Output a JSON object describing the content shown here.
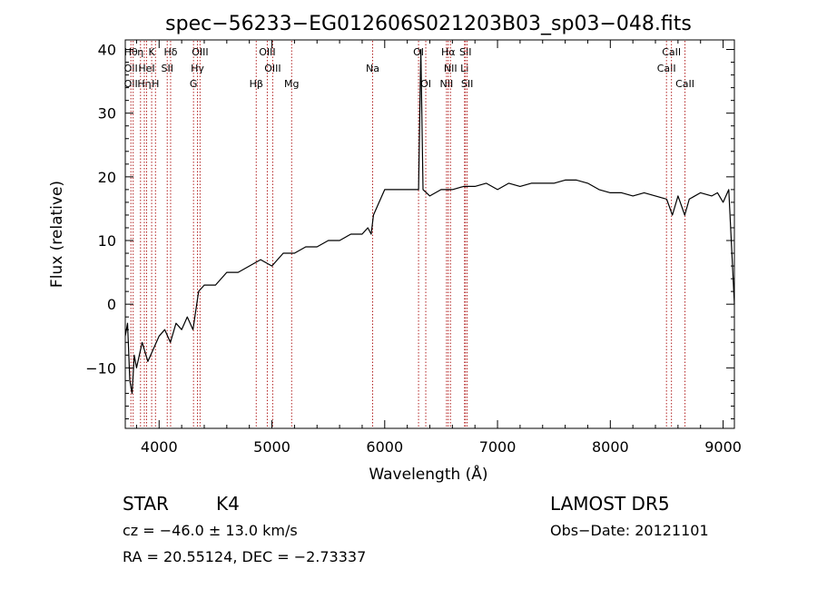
{
  "chart_data": {
    "type": "line",
    "title": "spec−56233−EG012606S021203B03_sp03−048.fits",
    "xlabel": "Wavelength (Å)",
    "ylabel": "Flux (relative)",
    "xlim": [
      3700,
      9100
    ],
    "ylim": [
      -19.5,
      41.5
    ],
    "xticks": [
      4000,
      5000,
      6000,
      7000,
      8000,
      9000
    ],
    "yticks": [
      -10,
      0,
      10,
      20,
      30,
      40
    ],
    "ytick_labels": [
      "−10",
      "0",
      "10",
      "20",
      "30",
      "40"
    ],
    "grid": false,
    "series": [
      {
        "points": [
          [
            3700,
            -5
          ],
          [
            3720,
            -3
          ],
          [
            3740,
            -12
          ],
          [
            3760,
            -14
          ],
          [
            3780,
            -8
          ],
          [
            3800,
            -10
          ],
          [
            3850,
            -6
          ],
          [
            3900,
            -9
          ],
          [
            3950,
            -7
          ],
          [
            4000,
            -5
          ],
          [
            4050,
            -4
          ],
          [
            4100,
            -6
          ],
          [
            4150,
            -3
          ],
          [
            4200,
            -4
          ],
          [
            4250,
            -2
          ],
          [
            4300,
            -4
          ],
          [
            4350,
            2
          ],
          [
            4400,
            3
          ],
          [
            4500,
            3
          ],
          [
            4600,
            5
          ],
          [
            4700,
            5
          ],
          [
            4800,
            6
          ],
          [
            4900,
            7
          ],
          [
            5000,
            6
          ],
          [
            5100,
            8
          ],
          [
            5200,
            8
          ],
          [
            5300,
            9
          ],
          [
            5400,
            9
          ],
          [
            5500,
            10
          ],
          [
            5600,
            10
          ],
          [
            5700,
            11
          ],
          [
            5800,
            11
          ],
          [
            5850,
            12
          ],
          [
            5880,
            11
          ],
          [
            5900,
            14
          ],
          [
            5950,
            16
          ],
          [
            6000,
            18
          ],
          [
            6100,
            18
          ],
          [
            6200,
            18
          ],
          [
            6300,
            18
          ],
          [
            6320,
            40
          ],
          [
            6340,
            18
          ],
          [
            6400,
            17
          ],
          [
            6500,
            18
          ],
          [
            6600,
            18
          ],
          [
            6700,
            18.5
          ],
          [
            6800,
            18.5
          ],
          [
            6900,
            19
          ],
          [
            7000,
            18
          ],
          [
            7100,
            19
          ],
          [
            7200,
            18.5
          ],
          [
            7300,
            19
          ],
          [
            7400,
            19
          ],
          [
            7500,
            19
          ],
          [
            7600,
            19.5
          ],
          [
            7700,
            19.5
          ],
          [
            7800,
            19
          ],
          [
            7900,
            18
          ],
          [
            8000,
            17.5
          ],
          [
            8100,
            17.5
          ],
          [
            8200,
            17
          ],
          [
            8300,
            17.5
          ],
          [
            8400,
            17
          ],
          [
            8500,
            16.5
          ],
          [
            8550,
            14
          ],
          [
            8600,
            17
          ],
          [
            8660,
            14
          ],
          [
            8700,
            16.5
          ],
          [
            8800,
            17.5
          ],
          [
            8900,
            17
          ],
          [
            8950,
            17.5
          ],
          [
            9000,
            16
          ],
          [
            9050,
            18
          ],
          [
            9100,
            0
          ]
        ]
      }
    ],
    "lines": [
      {
        "x": 3750,
        "labels": [
          "Hθ",
          "OII",
          "OII"
        ]
      },
      {
        "x": 3770,
        "labels": [
          "",
          "",
          ""
        ]
      },
      {
        "x": 3835,
        "labels": [
          "η",
          "",
          ""
        ]
      },
      {
        "x": 3869,
        "labels": [
          "",
          "",
          "Hη"
        ]
      },
      {
        "x": 3889,
        "labels": [
          "",
          "HeI",
          ""
        ]
      },
      {
        "x": 3934,
        "labels": [
          "K",
          "",
          ""
        ]
      },
      {
        "x": 3968,
        "labels": [
          "",
          "",
          "H"
        ]
      },
      {
        "x": 4072,
        "labels": [
          "",
          "SII",
          ""
        ]
      },
      {
        "x": 4102,
        "labels": [
          "Hδ",
          "",
          ""
        ]
      },
      {
        "x": 4305,
        "labels": [
          "",
          "",
          "G"
        ]
      },
      {
        "x": 4340,
        "labels": [
          "",
          "Hγ",
          ""
        ]
      },
      {
        "x": 4363,
        "labels": [
          "OIII",
          "",
          ""
        ]
      },
      {
        "x": 4861,
        "labels": [
          "",
          "",
          "Hβ"
        ]
      },
      {
        "x": 4959,
        "labels": [
          "OIII",
          "",
          ""
        ]
      },
      {
        "x": 5007,
        "labels": [
          "",
          "OIII",
          ""
        ]
      },
      {
        "x": 5175,
        "labels": [
          "",
          "",
          "Mg"
        ]
      },
      {
        "x": 5893,
        "labels": [
          "",
          "Na",
          ""
        ]
      },
      {
        "x": 6300,
        "labels": [
          "OI",
          "",
          ""
        ]
      },
      {
        "x": 6364,
        "labels": [
          "",
          "",
          "OI"
        ]
      },
      {
        "x": 6548,
        "labels": [
          "",
          "",
          "NII"
        ]
      },
      {
        "x": 6563,
        "labels": [
          "Hα",
          "",
          ""
        ]
      },
      {
        "x": 6583,
        "labels": [
          "",
          "NII",
          ""
        ]
      },
      {
        "x": 6708,
        "labels": [
          "",
          "Li",
          ""
        ]
      },
      {
        "x": 6716,
        "labels": [
          "SII",
          "",
          ""
        ]
      },
      {
        "x": 6731,
        "labels": [
          "",
          "",
          "SII"
        ]
      },
      {
        "x": 8498,
        "labels": [
          "",
          "CaII",
          ""
        ]
      },
      {
        "x": 8542,
        "labels": [
          "CaII",
          "",
          ""
        ]
      },
      {
        "x": 8662,
        "labels": [
          "",
          "",
          "CaII"
        ]
      }
    ],
    "line_color": "#b22222"
  },
  "info": {
    "class": "STAR",
    "subclass": "K4",
    "survey": "LAMOST DR5",
    "cz": "cz = −46.0 ± 13.0 km/s",
    "obs_date": "Obs−Date: 20121101",
    "radec": "RA =  20.55124, DEC =  −2.73337"
  }
}
